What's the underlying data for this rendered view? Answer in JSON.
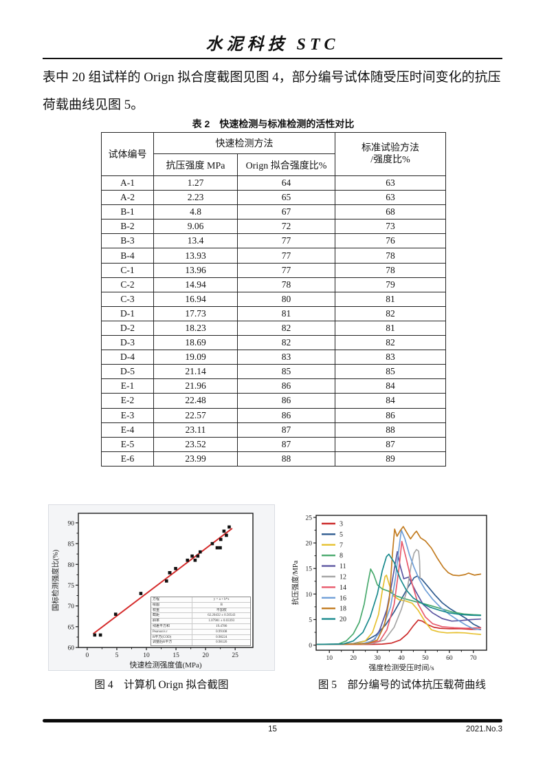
{
  "page": {
    "header": {
      "title": "水泥科技 STC"
    },
    "paragraph": {
      "line1": "表中 20 组试样的 Orign 拟合度截图见图 4，部分编号试体随受压时间变化的抗压",
      "line2": "荷载曲线见图 5。"
    },
    "footer": {
      "page_number": "15",
      "issue": "2021.No.3"
    }
  },
  "table": {
    "title": "表 2　快速检测与标准检测的活性对比",
    "header": {
      "specimen_id": "试体编号",
      "fast_method_group": "快速检测方法",
      "compressive_strength": "抗压强度 MPa",
      "orign_fit_ratio": "Orign 拟合强度比%",
      "standard_method_line1": "标准试验方法",
      "standard_method_line2": "/强度比%"
    },
    "rows": [
      [
        "A-1",
        "1.27",
        "64",
        "63"
      ],
      [
        "A-2",
        "2.23",
        "65",
        "63"
      ],
      [
        "B-1",
        "4.8",
        "67",
        "68"
      ],
      [
        "B-2",
        "9.06",
        "72",
        "73"
      ],
      [
        "B-3",
        "13.4",
        "77",
        "76"
      ],
      [
        "B-4",
        "13.93",
        "77",
        "78"
      ],
      [
        "C-1",
        "13.96",
        "77",
        "78"
      ],
      [
        "C-2",
        "14.94",
        "78",
        "79"
      ],
      [
        "C-3",
        "16.94",
        "80",
        "81"
      ],
      [
        "D-1",
        "17.73",
        "81",
        "82"
      ],
      [
        "D-2",
        "18.23",
        "82",
        "81"
      ],
      [
        "D-3",
        "18.69",
        "82",
        "82"
      ],
      [
        "D-4",
        "19.09",
        "83",
        "83"
      ],
      [
        "D-5",
        "21.14",
        "85",
        "85"
      ],
      [
        "E-1",
        "21.96",
        "86",
        "84"
      ],
      [
        "E-2",
        "22.48",
        "86",
        "84"
      ],
      [
        "E-3",
        "22.57",
        "86",
        "86"
      ],
      [
        "E-4",
        "23.11",
        "87",
        "88"
      ],
      [
        "E-5",
        "23.52",
        "87",
        "87"
      ],
      [
        "E-6",
        "23.99",
        "88",
        "89"
      ]
    ]
  },
  "figure4": {
    "caption": "图 4　计算机 Orign 拟合截图"
  },
  "figure5": {
    "caption": "图 5　部分编号的试体抗压载荷曲线"
  },
  "chart_data": [
    {
      "id": "fig4",
      "type": "scatter",
      "title": "",
      "xlabel": "快速检测强度值(MPa)",
      "ylabel": "国标检测强度比(%)",
      "xlim": [
        -1.5,
        28
      ],
      "ylim": [
        60,
        92.3
      ],
      "xticks": [
        0,
        5,
        10,
        15,
        20,
        25
      ],
      "yticks": [
        60,
        65,
        70,
        75,
        80,
        85,
        90
      ],
      "point_color": "#111111",
      "points": [
        [
          1.27,
          63
        ],
        [
          2.23,
          63
        ],
        [
          4.8,
          68
        ],
        [
          9.06,
          73
        ],
        [
          13.4,
          76
        ],
        [
          13.93,
          78
        ],
        [
          13.96,
          78
        ],
        [
          14.94,
          79
        ],
        [
          16.94,
          81
        ],
        [
          17.73,
          82
        ],
        [
          18.23,
          81
        ],
        [
          18.69,
          82
        ],
        [
          19.09,
          83
        ],
        [
          21.14,
          85
        ],
        [
          21.96,
          84
        ],
        [
          22.48,
          84
        ],
        [
          22.57,
          86
        ],
        [
          23.11,
          88
        ],
        [
          23.52,
          87
        ],
        [
          23.99,
          89
        ]
      ],
      "fit_line": {
        "intercept": 62.20432,
        "slope": 1.07981,
        "x_start": 1.0,
        "x_end": 24.5,
        "color": "#d52b2b"
      },
      "stats_table": [
        [
          "方程",
          "y = a + b*x"
        ],
        [
          "绘图",
          "B"
        ],
        [
          "权重",
          "不加权"
        ],
        [
          "截距",
          "62.20432 ± 0.50543"
        ],
        [
          "斜率",
          "1.07981 ± 0.03393"
        ],
        [
          "残差平方和",
          "19.4786"
        ],
        [
          "Pearson's r",
          "0.99108"
        ],
        [
          "R平方(COD)",
          "0.98224"
        ],
        [
          "调整后R平方",
          "0.98126"
        ]
      ]
    },
    {
      "id": "fig5",
      "type": "line",
      "title": "",
      "xlabel": "强度检测受压时间/s",
      "ylabel": "抗压强度/MPa",
      "xlim": [
        4.5,
        75.5
      ],
      "ylim": [
        -1,
        25.4
      ],
      "xticks": [
        10,
        20,
        30,
        40,
        50,
        60,
        70
      ],
      "yticks": [
        0,
        5,
        10,
        15,
        20,
        25
      ],
      "legend_position": "top-left",
      "series": [
        {
          "name": "3",
          "color": "#cc2b2b",
          "points": [
            [
              5,
              0.15
            ],
            [
              20,
              0.15
            ],
            [
              28,
              0.15
            ],
            [
              32,
              0.2
            ],
            [
              36,
              0.4
            ],
            [
              39.5,
              1.0
            ],
            [
              42.5,
              2.2
            ],
            [
              45,
              3.8
            ],
            [
              47,
              4.9
            ],
            [
              48.7,
              4.7
            ],
            [
              51,
              4.0
            ],
            [
              53.5,
              3.5
            ],
            [
              56,
              3.3
            ],
            [
              60,
              3.2
            ],
            [
              65,
              3.2
            ],
            [
              69,
              3.1
            ],
            [
              73,
              3.1
            ]
          ]
        },
        {
          "name": "5",
          "color": "#2f5b8f",
          "points": [
            [
              5,
              0.15
            ],
            [
              16,
              0.2
            ],
            [
              20,
              0.3
            ],
            [
              25,
              0.8
            ],
            [
              29.5,
              2.0
            ],
            [
              33.5,
              4.0
            ],
            [
              37,
              6.5
            ],
            [
              40,
              9.0
            ],
            [
              43,
              11.5
            ],
            [
              45.3,
              13.2
            ],
            [
              46.6,
              13.5
            ],
            [
              48.5,
              12.9
            ],
            [
              51,
              11.5
            ],
            [
              54,
              9.8
            ],
            [
              57,
              8.3
            ],
            [
              60,
              7.2
            ],
            [
              63.5,
              6.2
            ],
            [
              67,
              5.2
            ],
            [
              70,
              4.1
            ],
            [
              73,
              3.4
            ]
          ]
        },
        {
          "name": "7",
          "color": "#e6c02e",
          "points": [
            [
              5,
              0.15
            ],
            [
              17,
              0.2
            ],
            [
              21,
              0.3
            ],
            [
              25,
              0.8
            ],
            [
              28,
              2.5
            ],
            [
              30.5,
              6.0
            ],
            [
              32,
              10.5
            ],
            [
              33.2,
              13.4
            ],
            [
              33.8,
              13.7
            ],
            [
              35,
              11.8
            ],
            [
              36.8,
              9.6
            ],
            [
              39,
              8.9
            ],
            [
              42,
              8.6
            ],
            [
              44.5,
              8.2
            ],
            [
              47,
              6.8
            ],
            [
              50,
              4.5
            ],
            [
              52.5,
              3.0
            ],
            [
              55.5,
              2.6
            ],
            [
              59,
              2.4
            ],
            [
              63,
              2.45
            ],
            [
              66.5,
              2.4
            ],
            [
              70,
              2.2
            ],
            [
              73,
              2.1
            ]
          ]
        },
        {
          "name": "8",
          "color": "#47a96c",
          "points": [
            [
              5,
              0.15
            ],
            [
              12,
              0.2
            ],
            [
              14,
              0.25
            ],
            [
              17,
              0.8
            ],
            [
              20,
              2.2
            ],
            [
              22.5,
              4.5
            ],
            [
              24.5,
              8.0
            ],
            [
              26,
              12.0
            ],
            [
              27.2,
              14.9
            ],
            [
              28.5,
              13.8
            ],
            [
              30,
              11.8
            ],
            [
              32,
              11.0
            ],
            [
              34.5,
              10.6
            ],
            [
              38,
              9.6
            ],
            [
              42,
              9.0
            ],
            [
              46,
              8.5
            ],
            [
              51,
              7.9
            ],
            [
              56,
              7.2
            ],
            [
              61,
              6.5
            ],
            [
              66,
              6.1
            ],
            [
              70,
              5.95
            ],
            [
              73,
              5.9
            ]
          ]
        },
        {
          "name": "11",
          "color": "#5a55a0",
          "points": [
            [
              5,
              0.15
            ],
            [
              20,
              0.2
            ],
            [
              26,
              0.4
            ],
            [
              29,
              1.2
            ],
            [
              31,
              3.0
            ],
            [
              34,
              7.0
            ],
            [
              36,
              12.0
            ],
            [
              38.3,
              18.3
            ],
            [
              39.5,
              15.5
            ],
            [
              41,
              13.0
            ],
            [
              43,
              13.3
            ],
            [
              46,
              10.5
            ],
            [
              49,
              8.0
            ],
            [
              53,
              6.3
            ],
            [
              57,
              5.2
            ],
            [
              61,
              4.7
            ],
            [
              65,
              4.8
            ],
            [
              69,
              5.0
            ],
            [
              73,
              5.1
            ]
          ]
        },
        {
          "name": "12",
          "color": "#a6a6a6",
          "points": [
            [
              5,
              0.15
            ],
            [
              24,
              0.2
            ],
            [
              28,
              0.3
            ],
            [
              33,
              1.0
            ],
            [
              37,
              3.5
            ],
            [
              40,
              7.0
            ],
            [
              42.5,
              11.0
            ],
            [
              44,
              15.5
            ],
            [
              45.3,
              18.0
            ],
            [
              46.3,
              18.7
            ],
            [
              47.2,
              18.4
            ],
            [
              47.6,
              16.5
            ],
            [
              47.7,
              14.5
            ],
            [
              47.8,
              13.1
            ]
          ]
        },
        {
          "name": "14",
          "color": "#e8596b",
          "points": [
            [
              5,
              0.15
            ],
            [
              22,
              0.2
            ],
            [
              27,
              0.4
            ],
            [
              31,
              0.8
            ],
            [
              34,
              3.0
            ],
            [
              37,
              8.0
            ],
            [
              39,
              15.0
            ],
            [
              40.2,
              20.3
            ],
            [
              42,
              17.0
            ],
            [
              44.5,
              12.0
            ],
            [
              47,
              8.0
            ],
            [
              50,
              5.5
            ],
            [
              53,
              4.2
            ],
            [
              57,
              3.6
            ],
            [
              62,
              3.4
            ],
            [
              67,
              3.3
            ],
            [
              73,
              3.4
            ]
          ]
        },
        {
          "name": "16",
          "color": "#6f9fd8",
          "points": [
            [
              5,
              0.15
            ],
            [
              20,
              0.2
            ],
            [
              24,
              0.3
            ],
            [
              28,
              0.8
            ],
            [
              32,
              3.0
            ],
            [
              35.5,
              7.5
            ],
            [
              37.5,
              13.0
            ],
            [
              39,
              19.0
            ],
            [
              40,
              22.5
            ],
            [
              41.5,
              20.8
            ],
            [
              43.3,
              17.8
            ],
            [
              45.3,
              15.2
            ],
            [
              47.5,
              12.8
            ],
            [
              50,
              10.8
            ],
            [
              53,
              9.0
            ],
            [
              56.5,
              7.3
            ],
            [
              60,
              6.0
            ],
            [
              63.5,
              4.9
            ],
            [
              67,
              3.9
            ],
            [
              70,
              3.2
            ],
            [
              73,
              3.0
            ]
          ]
        },
        {
          "name": "18",
          "color": "#c27b1f",
          "points": [
            [
              5,
              0.15
            ],
            [
              22,
              0.2
            ],
            [
              26,
              0.3
            ],
            [
              30,
              1.0
            ],
            [
              33,
              4.0
            ],
            [
              35,
              9.0
            ],
            [
              36.3,
              18.0
            ],
            [
              37.2,
              22.7
            ],
            [
              38.2,
              21.3
            ],
            [
              39.5,
              22.4
            ],
            [
              40.8,
              23.2
            ],
            [
              42.3,
              22.0
            ],
            [
              43.8,
              20.8
            ],
            [
              45.5,
              21.9
            ],
            [
              46.3,
              22.3
            ],
            [
              48,
              21.0
            ],
            [
              50,
              20.4
            ],
            [
              52.5,
              19.0
            ],
            [
              55,
              17.0
            ],
            [
              57.5,
              15.2
            ],
            [
              59.5,
              14.2
            ],
            [
              61.5,
              13.7
            ],
            [
              64,
              13.6
            ],
            [
              66.5,
              13.8
            ],
            [
              68,
              14.1
            ],
            [
              70.5,
              13.7
            ],
            [
              73,
              13.9
            ]
          ]
        },
        {
          "name": "20",
          "color": "#17898c",
          "points": [
            [
              5,
              0.15
            ],
            [
              14,
              0.2
            ],
            [
              16,
              0.25
            ],
            [
              20,
              0.8
            ],
            [
              24,
              2.5
            ],
            [
              27,
              5.5
            ],
            [
              30,
              10.0
            ],
            [
              32,
              14.5
            ],
            [
              33.8,
              17.3
            ],
            [
              34.8,
              17.8
            ],
            [
              37,
              16.2
            ],
            [
              39.5,
              13.0
            ],
            [
              42,
              10.8
            ],
            [
              45,
              9.2
            ],
            [
              48.5,
              8.2
            ],
            [
              52,
              7.4
            ],
            [
              56,
              6.8
            ],
            [
              60,
              6.3
            ],
            [
              64.5,
              6.0
            ],
            [
              69,
              5.85
            ],
            [
              73,
              5.8
            ]
          ]
        }
      ]
    }
  ]
}
